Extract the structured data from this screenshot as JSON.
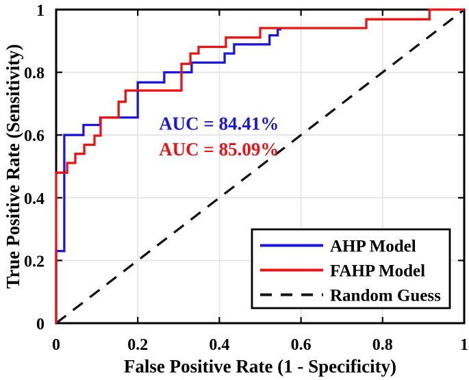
{
  "chart_data": {
    "type": "line",
    "subtype": "roc-step-curves",
    "title": "",
    "xlabel": "False Positive Rate (1 - Specificity)",
    "ylabel": "True Positive Rate (Sensitivity)",
    "xlim": [
      0,
      1
    ],
    "ylim": [
      0,
      1
    ],
    "grid": true,
    "grid_color": "#e2e2e2",
    "background_color": "#ffffff",
    "axis_color": "#000000",
    "legend_position": "bottom-right",
    "x_ticks": [
      {
        "label": "0",
        "v": 0
      },
      {
        "label": "0.2",
        "v": 0.2
      },
      {
        "label": "0.4",
        "v": 0.4
      },
      {
        "label": "0.6",
        "v": 0.6
      },
      {
        "label": "0.8",
        "v": 0.8
      },
      {
        "label": "1",
        "v": 1
      }
    ],
    "y_ticks": [
      {
        "label": "0",
        "v": 0
      },
      {
        "label": "0.2",
        "v": 0.2
      },
      {
        "label": "0.4",
        "v": 0.4
      },
      {
        "label": "0.6",
        "v": 0.6
      },
      {
        "label": "0.8",
        "v": 0.8
      },
      {
        "label": "1",
        "v": 1
      }
    ],
    "series": [
      {
        "name": "AHP Model",
        "color": "#1a16e0",
        "style": "solid",
        "auc_percent": 84.41,
        "points": [
          [
            0,
            0
          ],
          [
            0,
            0.23
          ],
          [
            0.02,
            0.23
          ],
          [
            0.02,
            0.6
          ],
          [
            0.067,
            0.6
          ],
          [
            0.067,
            0.632
          ],
          [
            0.108,
            0.632
          ],
          [
            0.108,
            0.656
          ],
          [
            0.2,
            0.656
          ],
          [
            0.2,
            0.768
          ],
          [
            0.265,
            0.768
          ],
          [
            0.265,
            0.8
          ],
          [
            0.332,
            0.8
          ],
          [
            0.332,
            0.831
          ],
          [
            0.413,
            0.831
          ],
          [
            0.413,
            0.86
          ],
          [
            0.436,
            0.86
          ],
          [
            0.436,
            0.889
          ],
          [
            0.523,
            0.889
          ],
          [
            0.523,
            0.918
          ],
          [
            0.543,
            0.918
          ],
          [
            0.543,
            0.937
          ],
          [
            0.552,
            0.937
          ]
        ]
      },
      {
        "name": "FAHP Model",
        "color": "#ee1111",
        "style": "solid",
        "auc_percent": 85.09,
        "points": [
          [
            0,
            0
          ],
          [
            0,
            0.48
          ],
          [
            0.027,
            0.48
          ],
          [
            0.027,
            0.511
          ],
          [
            0.047,
            0.511
          ],
          [
            0.047,
            0.54
          ],
          [
            0.069,
            0.54
          ],
          [
            0.069,
            0.569
          ],
          [
            0.094,
            0.569
          ],
          [
            0.094,
            0.598
          ],
          [
            0.109,
            0.598
          ],
          [
            0.109,
            0.656
          ],
          [
            0.153,
            0.656
          ],
          [
            0.153,
            0.706
          ],
          [
            0.17,
            0.706
          ],
          [
            0.17,
            0.742
          ],
          [
            0.307,
            0.742
          ],
          [
            0.307,
            0.827
          ],
          [
            0.329,
            0.827
          ],
          [
            0.329,
            0.86
          ],
          [
            0.349,
            0.86
          ],
          [
            0.349,
            0.881
          ],
          [
            0.416,
            0.881
          ],
          [
            0.416,
            0.911
          ],
          [
            0.5,
            0.911
          ],
          [
            0.5,
            0.941
          ],
          [
            0.76,
            0.941
          ],
          [
            0.76,
            0.969
          ],
          [
            0.915,
            0.969
          ],
          [
            0.915,
            1.0
          ],
          [
            1.0,
            1.0
          ]
        ]
      },
      {
        "name": "Random Guess",
        "color": "#141414",
        "style": "dashed",
        "points": [
          [
            0,
            0
          ],
          [
            1,
            1
          ]
        ]
      }
    ],
    "annotations": [
      {
        "text": "AUC = 84.41%",
        "color": "#1a16e0",
        "x": 0.252,
        "y": 0.617
      },
      {
        "text": "AUC = 85.09%",
        "color": "#ee1111",
        "x": 0.252,
        "y": 0.535
      }
    ]
  },
  "legend": {
    "items": [
      {
        "label": "AHP Model"
      },
      {
        "label": "FAHP Model"
      },
      {
        "label": "Random Guess"
      }
    ]
  }
}
